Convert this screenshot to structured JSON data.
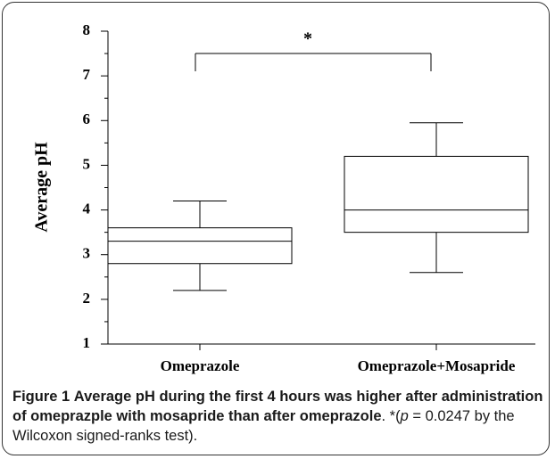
{
  "chart_data": {
    "type": "box",
    "ylabel": "Average pH",
    "categories": [
      "Omeprazole",
      "Omeprazole+Mosapride"
    ],
    "series": [
      {
        "name": "Omeprazole",
        "low": 2.2,
        "q1": 2.8,
        "median": 3.3,
        "q3": 3.6,
        "high": 4.2
      },
      {
        "name": "Omeprazole+Mosapride",
        "low": 2.6,
        "q1": 3.5,
        "median": 4.0,
        "q3": 5.2,
        "high": 5.95
      }
    ],
    "ylim": [
      1,
      8
    ],
    "yticks": [
      1,
      2,
      3,
      4,
      5,
      6,
      7,
      8
    ],
    "yminorticks": [
      1.5,
      2.5,
      3.5,
      4.5,
      5.5,
      6.5,
      7.5
    ],
    "annotation": "*"
  },
  "caption": {
    "label": "Figure 1",
    "bold": "Average pH during the first 4 hours was higher after administration of omeprazple with mosapride than after omeprazole",
    "rest1": ". *(",
    "italic": "p",
    "rest2": " = 0.0247 by the Wilcoxon signed-ranks test)."
  }
}
